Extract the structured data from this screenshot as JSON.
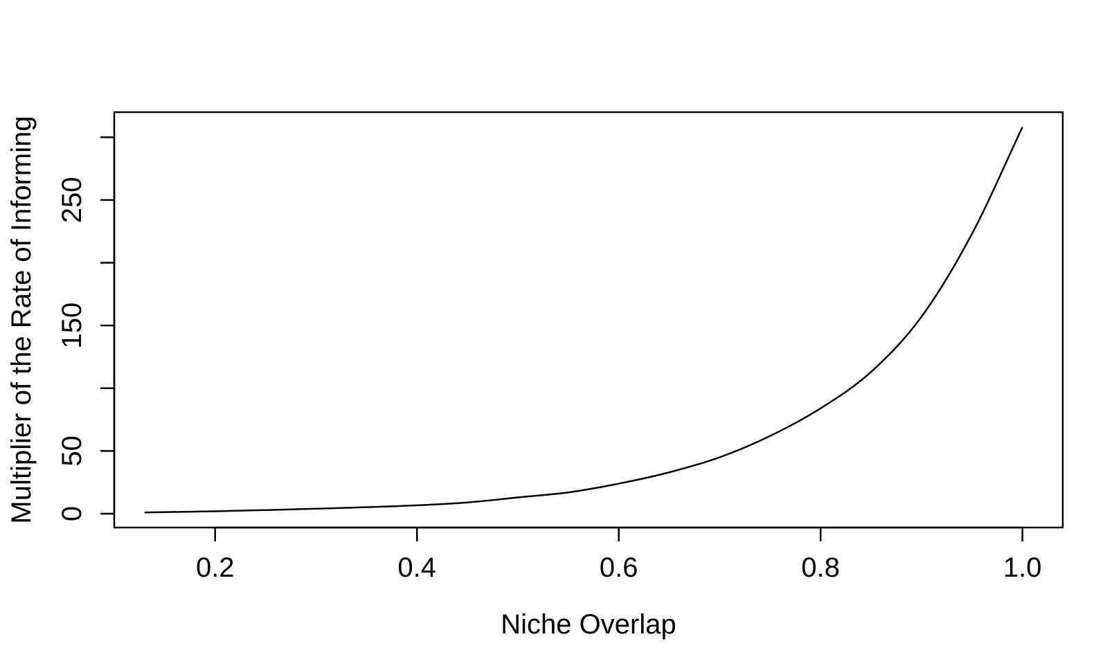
{
  "chart_data": {
    "type": "line",
    "title": "",
    "xlabel": "Niche Overlap",
    "ylabel": "Multiplier of the Rate of Informing",
    "xlim": [
      0.1,
      1.04
    ],
    "ylim": [
      -11,
      320
    ],
    "x_ticks": [
      0.2,
      0.4,
      0.6,
      0.8,
      1.0
    ],
    "x_tick_labels": [
      "0.2",
      "0.4",
      "0.6",
      "0.8",
      "1.0"
    ],
    "y_ticks": [
      0,
      50,
      100,
      150,
      200,
      250,
      300
    ],
    "y_tick_labels": [
      "0",
      "50",
      "",
      "150",
      "",
      "250",
      ""
    ],
    "grid": false,
    "legend": "none",
    "line_color": "#000000",
    "series": [
      {
        "x": [
          0.13,
          0.2,
          0.3,
          0.4,
          0.45,
          0.5,
          0.55,
          0.6,
          0.65,
          0.7,
          0.75,
          0.8,
          0.85,
          0.9,
          0.95,
          1.0
        ],
        "values": [
          1,
          2,
          4,
          6.7,
          9,
          13,
          17,
          24,
          33,
          45,
          62,
          84,
          113,
          157,
          223,
          308
        ]
      }
    ]
  }
}
